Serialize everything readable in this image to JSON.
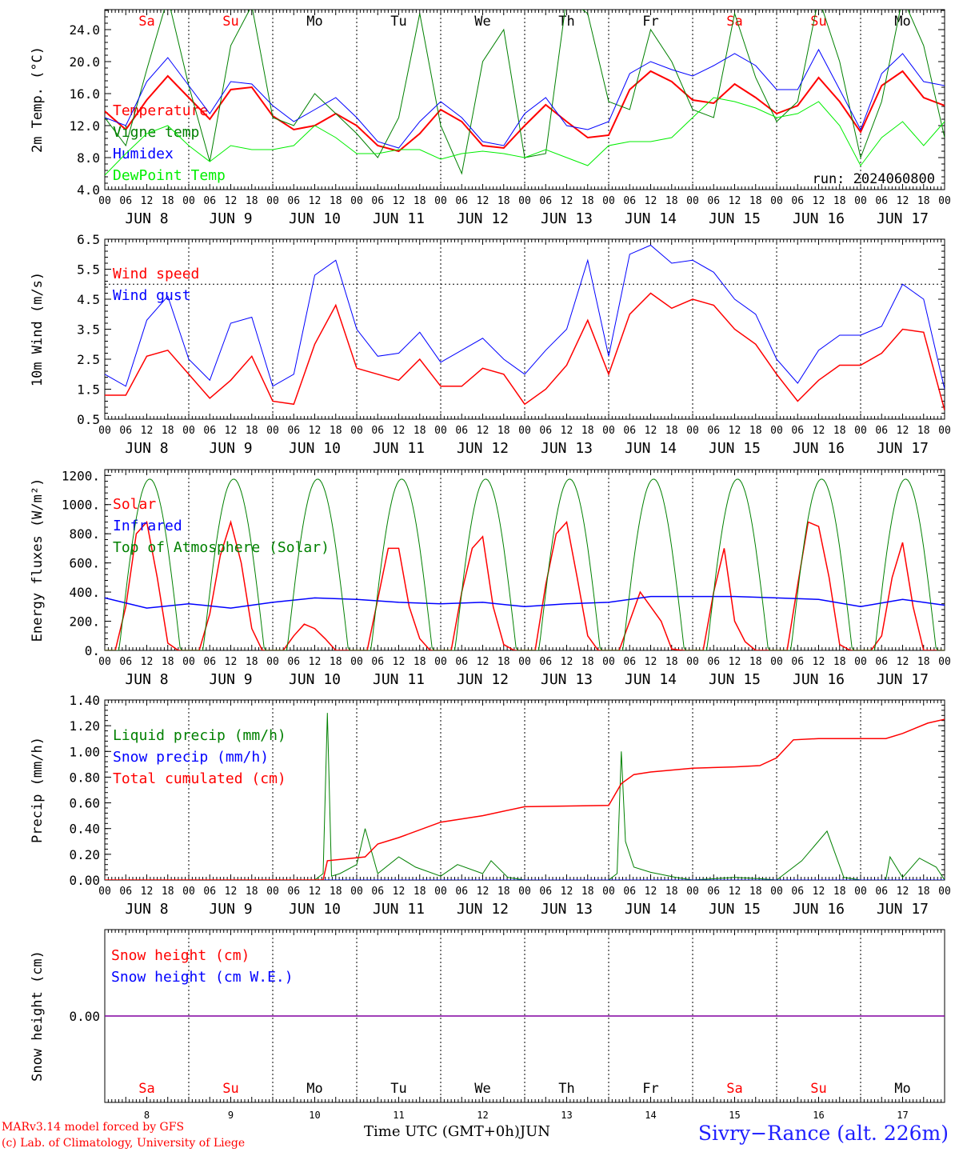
{
  "chart_data": [
    {
      "type": "line",
      "ylabel": "2m Temp. (°C)",
      "ylim": [
        4,
        26.5
      ],
      "yticks": [
        "4.0",
        "8.0",
        "12.0",
        "16.0",
        "20.0",
        "24.0"
      ],
      "ytick_values": [
        4,
        8,
        12,
        16,
        20,
        24
      ],
      "annotation": "run: 2024060800",
      "weekday_labels": true,
      "series": [
        {
          "name": "Temperature",
          "color": "#ff0000",
          "width": 2,
          "x": [
            0,
            0.25,
            0.5,
            0.75,
            1,
            1.25,
            1.5,
            1.75,
            2,
            2.25,
            2.5,
            2.75,
            3,
            3.25,
            3.5,
            3.75,
            4,
            4.25,
            4.5,
            4.75,
            5,
            5.25,
            5.5,
            5.75,
            6,
            6.25,
            6.5,
            6.75,
            7,
            7.25,
            7.5,
            7.75,
            8,
            8.25,
            8.5,
            8.75,
            9,
            9.25,
            9.5,
            9.75,
            10
          ],
          "values": [
            13.8,
            11.5,
            15.2,
            18.2,
            15.5,
            12.8,
            16.5,
            16.8,
            13.2,
            11.5,
            12.0,
            13.5,
            12.0,
            9.5,
            8.8,
            11.0,
            14.0,
            12.5,
            9.5,
            9.2,
            12.0,
            14.6,
            12.5,
            10.5,
            10.8,
            16.5,
            18.8,
            17.5,
            15.2,
            14.8,
            17.2,
            15.5,
            13.5,
            14.5,
            18.0,
            15.0,
            11.2,
            17.0,
            18.8,
            15.5,
            14.5
          ]
        },
        {
          "name": "Vigne temp",
          "color": "#008000",
          "width": 1,
          "x": [
            0,
            0.25,
            0.5,
            0.75,
            1,
            1.25,
            1.5,
            1.75,
            2,
            2.25,
            2.5,
            2.75,
            3,
            3.25,
            3.5,
            3.75,
            4,
            4.25,
            4.5,
            4.75,
            5,
            5.25,
            5.5,
            5.75,
            6,
            6.25,
            6.5,
            6.75,
            7,
            7.25,
            7.5,
            7.75,
            8,
            8.25,
            8.5,
            8.75,
            9,
            9.25,
            9.5,
            9.75,
            10
          ],
          "values": [
            13.0,
            9.5,
            19.0,
            28.0,
            17.0,
            7.5,
            22.0,
            27.0,
            13.0,
            12.0,
            16.0,
            13.5,
            11.0,
            8.0,
            13.0,
            26.0,
            12.0,
            6.0,
            20.0,
            24.0,
            8.0,
            8.5,
            28.0,
            26.0,
            15.0,
            14.0,
            24.0,
            20.0,
            14.0,
            13.0,
            26.0,
            18.0,
            12.5,
            15.0,
            28.0,
            20.0,
            8.0,
            15.0,
            28.0,
            22.0,
            10.5
          ]
        },
        {
          "name": "Humidex",
          "color": "#0000ff",
          "width": 1,
          "x": [
            0,
            0.25,
            0.5,
            0.75,
            1,
            1.25,
            1.5,
            1.75,
            2,
            2.25,
            2.5,
            2.75,
            3,
            3.25,
            3.5,
            3.75,
            4,
            4.25,
            4.5,
            4.75,
            5,
            5.25,
            5.5,
            5.75,
            6,
            6.25,
            6.5,
            6.75,
            7,
            7.25,
            7.5,
            7.75,
            8,
            8.25,
            8.5,
            8.75,
            9,
            9.25,
            9.5,
            9.75,
            10
          ],
          "values": [
            13.0,
            12.0,
            17.5,
            20.5,
            17.0,
            13.5,
            17.5,
            17.2,
            14.5,
            12.5,
            14.0,
            15.5,
            13.0,
            10.0,
            9.2,
            12.5,
            15.0,
            13.0,
            10.0,
            9.5,
            13.5,
            15.5,
            12.0,
            11.5,
            12.5,
            18.5,
            20.0,
            19.0,
            18.2,
            19.5,
            21.0,
            19.5,
            16.5,
            16.5,
            21.5,
            16.5,
            11.5,
            18.5,
            21.0,
            17.5,
            17.0
          ]
        },
        {
          "name": "DewPoint Temp",
          "color": "#00ee00",
          "width": 1,
          "x": [
            0,
            0.25,
            0.5,
            0.75,
            1,
            1.25,
            1.5,
            1.75,
            2,
            2.25,
            2.5,
            2.75,
            3,
            3.25,
            3.5,
            3.75,
            4,
            4.25,
            4.5,
            4.75,
            5,
            5.25,
            5.5,
            5.75,
            6,
            6.25,
            6.5,
            6.75,
            7,
            7.25,
            7.5,
            7.75,
            8,
            8.25,
            8.5,
            8.75,
            9,
            9.25,
            9.5,
            9.75,
            10
          ],
          "values": [
            5.8,
            8.5,
            11.0,
            12.0,
            9.5,
            7.5,
            9.5,
            9.0,
            9.0,
            9.5,
            12.0,
            10.5,
            8.5,
            8.5,
            9.0,
            9.0,
            7.8,
            8.5,
            8.8,
            8.5,
            8.0,
            9.0,
            8.0,
            7.0,
            9.5,
            10.0,
            10.0,
            10.5,
            13.0,
            15.5,
            15.0,
            14.2,
            13.0,
            13.5,
            15.0,
            12.0,
            7.0,
            10.5,
            12.5,
            9.5,
            12.5
          ]
        }
      ]
    },
    {
      "type": "line",
      "ylabel": "10m Wind (m/s)",
      "ylim": [
        0.5,
        6.5
      ],
      "yticks": [
        "0.5",
        "1.5",
        "2.5",
        "3.5",
        "4.5",
        "5.5",
        "6.5"
      ],
      "ytick_values": [
        0.5,
        1.5,
        2.5,
        3.5,
        4.5,
        5.5,
        6.5
      ],
      "reference_line": 5.0,
      "series": [
        {
          "name": "Wind speed",
          "color": "#ff0000",
          "width": 1.5,
          "x": [
            0,
            0.25,
            0.5,
            0.75,
            1,
            1.25,
            1.5,
            1.75,
            2,
            2.25,
            2.5,
            2.75,
            3,
            3.25,
            3.5,
            3.75,
            4,
            4.25,
            4.5,
            4.75,
            5,
            5.25,
            5.5,
            5.75,
            6,
            6.25,
            6.5,
            6.75,
            7,
            7.25,
            7.5,
            7.75,
            8,
            8.25,
            8.5,
            8.75,
            9,
            9.25,
            9.5,
            9.75,
            10
          ],
          "values": [
            1.3,
            1.3,
            2.6,
            2.8,
            2.0,
            1.2,
            1.8,
            2.6,
            1.1,
            1.0,
            3.0,
            4.3,
            2.2,
            2.0,
            1.8,
            2.5,
            1.6,
            1.6,
            2.2,
            2.0,
            1.0,
            1.5,
            2.3,
            3.8,
            2.0,
            4.0,
            4.7,
            4.2,
            4.5,
            4.3,
            3.5,
            3.0,
            2.0,
            1.1,
            1.8,
            2.3,
            2.3,
            2.7,
            3.5,
            3.4,
            0.8
          ]
        },
        {
          "name": "Wind gust",
          "color": "#0000ff",
          "width": 1,
          "x": [
            0,
            0.25,
            0.5,
            0.75,
            1,
            1.25,
            1.5,
            1.75,
            2,
            2.25,
            2.5,
            2.75,
            3,
            3.25,
            3.5,
            3.75,
            4,
            4.25,
            4.5,
            4.75,
            5,
            5.25,
            5.5,
            5.75,
            6,
            6.25,
            6.5,
            6.75,
            7,
            7.25,
            7.5,
            7.75,
            8,
            8.25,
            8.5,
            8.75,
            9,
            9.25,
            9.5,
            9.75,
            10
          ],
          "values": [
            2.0,
            1.6,
            3.8,
            4.6,
            2.5,
            1.8,
            3.7,
            3.9,
            1.6,
            2.0,
            5.3,
            5.8,
            3.5,
            2.6,
            2.7,
            3.4,
            2.4,
            2.8,
            3.2,
            2.5,
            2.0,
            2.8,
            3.5,
            5.8,
            2.6,
            6.0,
            6.3,
            5.7,
            5.8,
            5.4,
            4.5,
            4.0,
            2.5,
            1.7,
            2.8,
            3.3,
            3.3,
            3.6,
            5.0,
            4.5,
            1.5
          ]
        }
      ]
    },
    {
      "type": "line",
      "ylabel": "Energy fluxes (W/m²)",
      "ylim": [
        0,
        1240
      ],
      "yticks": [
        "0.",
        "200.",
        "400.",
        "600.",
        "800.",
        "1000.",
        "1200."
      ],
      "ytick_values": [
        0,
        200,
        400,
        600,
        800,
        1000,
        1200
      ],
      "series": [
        {
          "name": "Solar",
          "color": "#ff0000",
          "width": 1.5,
          "x": [
            0,
            0.125,
            0.25,
            0.375,
            0.5,
            0.625,
            0.75,
            0.875,
            1,
            1.125,
            1.25,
            1.375,
            1.5,
            1.625,
            1.75,
            1.875,
            2,
            2.125,
            2.25,
            2.375,
            2.5,
            2.625,
            2.75,
            2.875,
            3,
            3.125,
            3.25,
            3.375,
            3.5,
            3.625,
            3.75,
            3.875,
            4,
            4.125,
            4.25,
            4.375,
            4.5,
            4.625,
            4.75,
            4.875,
            5,
            5.125,
            5.25,
            5.375,
            5.5,
            5.625,
            5.75,
            5.875,
            6,
            6.125,
            6.25,
            6.375,
            6.5,
            6.625,
            6.75,
            6.875,
            7,
            7.125,
            7.25,
            7.375,
            7.5,
            7.625,
            7.75,
            7.875,
            8,
            8.125,
            8.25,
            8.375,
            8.5,
            8.625,
            8.75,
            8.875,
            9,
            9.125,
            9.25,
            9.375,
            9.5,
            9.625,
            9.75,
            9.875,
            10
          ],
          "values": [
            0,
            0,
            300,
            800,
            880,
            500,
            50,
            0,
            0,
            0,
            250,
            650,
            880,
            600,
            150,
            0,
            0,
            0,
            100,
            180,
            150,
            80,
            0,
            0,
            0,
            0,
            350,
            700,
            700,
            300,
            80,
            0,
            0,
            0,
            400,
            700,
            780,
            300,
            40,
            0,
            0,
            0,
            450,
            800,
            880,
            500,
            100,
            0,
            0,
            0,
            200,
            400,
            300,
            200,
            10,
            0,
            0,
            0,
            400,
            700,
            200,
            60,
            0,
            0,
            0,
            0,
            450,
            880,
            850,
            500,
            40,
            0,
            0,
            0,
            100,
            500,
            740,
            300,
            0,
            0,
            0
          ]
        },
        {
          "name": "Infrared",
          "color": "#0000ff",
          "width": 1.5,
          "x": [
            0,
            0.5,
            1,
            1.5,
            2,
            2.5,
            3,
            3.5,
            4,
            4.5,
            5,
            5.5,
            6,
            6.5,
            7,
            7.5,
            8,
            8.5,
            9,
            9.5,
            10
          ],
          "values": [
            360,
            290,
            320,
            290,
            330,
            360,
            350,
            330,
            320,
            330,
            300,
            320,
            330,
            370,
            370,
            370,
            360,
            350,
            300,
            350,
            310
          ]
        },
        {
          "name": "Top of Atmosphere (Solar)",
          "color": "#008000",
          "width": 1,
          "toa": true,
          "peak": 1175,
          "sunrise": 0.17,
          "sunset": 0.9
        }
      ]
    },
    {
      "type": "line",
      "ylabel": "Precip (mm/h)",
      "ylim": [
        0,
        1.4
      ],
      "yticks": [
        "0.00",
        "0.20",
        "0.40",
        "0.60",
        "0.80",
        "1.00",
        "1.20",
        "1.40"
      ],
      "ytick_values": [
        0,
        0.2,
        0.4,
        0.6,
        0.8,
        1.0,
        1.2,
        1.4
      ],
      "series": [
        {
          "name": "Liquid precip (mm/h)",
          "color": "#008000",
          "width": 1,
          "x": [
            0,
            2.5,
            2.6,
            2.65,
            2.7,
            2.8,
            3.0,
            3.1,
            3.25,
            3.5,
            3.7,
            4.0,
            4.2,
            4.5,
            4.6,
            4.8,
            5.0,
            6.0,
            6.1,
            6.15,
            6.2,
            6.3,
            6.5,
            6.8,
            7.0,
            7.5,
            7.8,
            8.0,
            8.3,
            8.6,
            8.8,
            9.0,
            9.3,
            9.35,
            9.5,
            9.7,
            9.9,
            10
          ],
          "values": [
            0,
            0,
            0.05,
            1.3,
            0.03,
            0.05,
            0.12,
            0.4,
            0.05,
            0.18,
            0.1,
            0.03,
            0.12,
            0.05,
            0.15,
            0.02,
            0,
            0,
            0.05,
            1.0,
            0.3,
            0.1,
            0.06,
            0.02,
            0,
            0.02,
            0.01,
            0,
            0.15,
            0.38,
            0.02,
            0,
            0,
            0.18,
            0.02,
            0.17,
            0.1,
            0
          ]
        },
        {
          "name": "Snow precip (mm/h)",
          "color": "#0000ff",
          "width": 1,
          "x": [
            0,
            10
          ],
          "values": [
            0,
            0
          ]
        },
        {
          "name": "Total cumulated (cm)",
          "color": "#ff0000",
          "width": 1.5,
          "x": [
            0,
            2.6,
            2.65,
            3.1,
            3.25,
            3.5,
            4.0,
            4.5,
            5.0,
            6.0,
            6.15,
            6.3,
            6.5,
            7.0,
            7.5,
            7.8,
            8.0,
            8.2,
            8.5,
            9.0,
            9.3,
            9.5,
            9.8,
            10
          ],
          "values": [
            0,
            0,
            0.15,
            0.18,
            0.28,
            0.33,
            0.45,
            0.5,
            0.57,
            0.58,
            0.75,
            0.82,
            0.84,
            0.87,
            0.88,
            0.89,
            0.95,
            1.09,
            1.1,
            1.1,
            1.1,
            1.14,
            1.22,
            1.25
          ]
        }
      ]
    },
    {
      "type": "line",
      "ylabel": "Snow height (cm)",
      "ylim": [
        -1,
        1
      ],
      "yticks": [
        "0.00"
      ],
      "ytick_values": [
        0
      ],
      "series": [
        {
          "name": "Snow height (cm)",
          "color": "#ff0000",
          "width": 1,
          "x": [
            0,
            10
          ],
          "values": [
            0,
            0
          ]
        },
        {
          "name": "Snow height (cm W.E.)",
          "color": "#0000ff",
          "width": 1,
          "x": [
            0,
            10
          ],
          "values": [
            0,
            0
          ]
        }
      ]
    }
  ],
  "x_axis": {
    "hour_ticks": [
      "00",
      "06",
      "12",
      "18"
    ],
    "last_tick": "00",
    "dates": [
      "JUN  8",
      "JUN  9",
      "JUN 10",
      "JUN 11",
      "JUN 12",
      "JUN 13",
      "JUN 14",
      "JUN 15",
      "JUN 16",
      "JUN 17"
    ],
    "weekdays": [
      "Sa",
      "Su",
      "Mo",
      "Tu",
      "We",
      "Th",
      "Fr",
      "Sa",
      "Su",
      "Mo"
    ],
    "weekend_color": "#ff0000",
    "weekday_color": "#000000",
    "bottom_days": [
      "8",
      "9",
      "10",
      "11",
      "12",
      "13",
      "14",
      "15",
      "16",
      "17"
    ]
  },
  "footer": {
    "credit_line1": "MARv3.14 model forced by GFS",
    "credit_line2": "(c) Lab. of Climatology, University of Liege",
    "axis_title": "Time UTC (GMT+0h)",
    "month": "JUN",
    "station": "Sivry−Rance (alt. 226m)"
  }
}
